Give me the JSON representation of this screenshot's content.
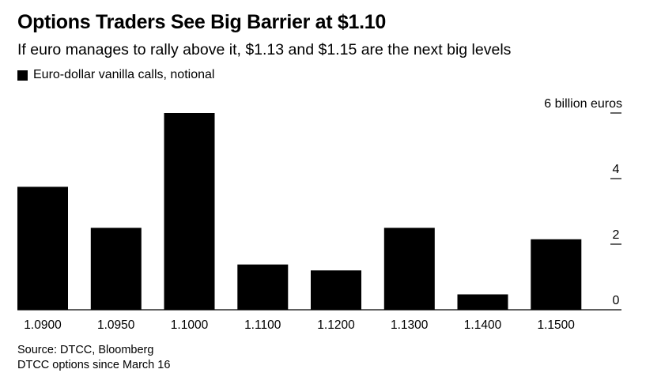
{
  "header": {
    "title": "Options Traders See Big Barrier at $1.10",
    "subtitle": "If euro manages to rally above it, $1.13 and $1.15 are the next big levels"
  },
  "legend": {
    "label": "Euro-dollar vanilla calls, notional",
    "color": "#000000"
  },
  "footer": {
    "source": "Source: DTCC, Bloomberg",
    "note": "DTCC options since March 16"
  },
  "chart_data": {
    "type": "bar",
    "title": "Options Traders See Big Barrier at $1.10",
    "categories": [
      "1.0900",
      "1.0950",
      "1.1000",
      "1.1100",
      "1.1200",
      "1.1300",
      "1.1400",
      "1.1500"
    ],
    "series": [
      {
        "name": "Euro-dollar vanilla calls, notional",
        "values": [
          3.75,
          2.5,
          6.0,
          1.38,
          1.2,
          2.5,
          0.47,
          2.15
        ]
      }
    ],
    "xlabel": "",
    "ylabel": "6 billion euros",
    "ylim": [
      0,
      6
    ],
    "yticks": [
      0,
      2,
      4,
      6
    ],
    "ytick_labels": [
      "0",
      "2",
      "4",
      "6 billion euros"
    ],
    "bar_color": "#000000",
    "grid": false,
    "y_axis_side": "right"
  }
}
